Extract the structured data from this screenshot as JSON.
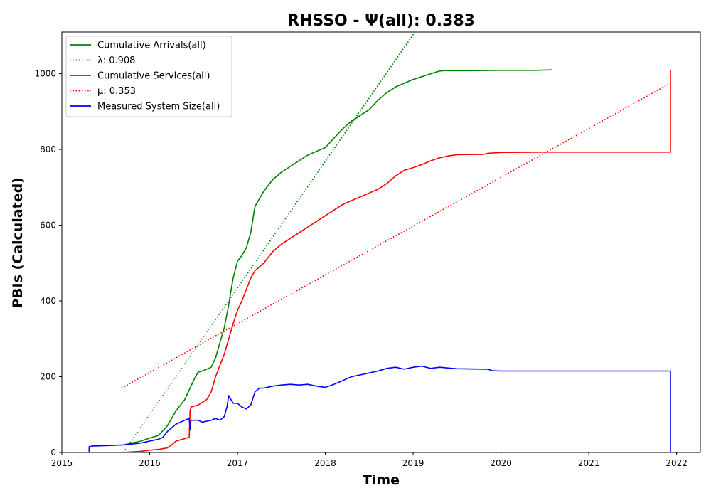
{
  "chart_data": {
    "type": "line",
    "title": "RHSSO -  Ψ(all): 0.383",
    "xlabel": "Time",
    "ylabel": "PBIs (Calculated)",
    "xlim": [
      2015.0,
      2022.27
    ],
    "ylim": [
      0,
      1110
    ],
    "x_ticks": [
      2015,
      2016,
      2017,
      2018,
      2019,
      2020,
      2021,
      2022
    ],
    "y_ticks": [
      0,
      200,
      400,
      600,
      800,
      1000
    ],
    "legend_position": "top-left",
    "grid": false,
    "series": [
      {
        "name": "Cumulative Arrivals(all)",
        "style": "solid",
        "color": "#008000",
        "x": [
          2015.7,
          2015.8,
          2015.9,
          2016.0,
          2016.1,
          2016.2,
          2016.3,
          2016.4,
          2016.5,
          2016.55,
          2016.6,
          2016.7,
          2016.75,
          2016.8,
          2016.85,
          2016.9,
          2016.92,
          2016.95,
          2017.0,
          2017.05,
          2017.1,
          2017.15,
          2017.2,
          2017.25,
          2017.3,
          2017.4,
          2017.5,
          2017.6,
          2017.7,
          2017.8,
          2017.9,
          2018.0,
          2018.1,
          2018.2,
          2018.3,
          2018.4,
          2018.5,
          2018.6,
          2018.7,
          2018.8,
          2018.9,
          2019.0,
          2019.1,
          2019.2,
          2019.3,
          2019.35,
          2019.6,
          2020.0,
          2020.4,
          2020.58
        ],
        "y": [
          20,
          25,
          30,
          38,
          45,
          70,
          110,
          140,
          190,
          212,
          215,
          225,
          250,
          290,
          330,
          390,
          420,
          460,
          505,
          520,
          540,
          580,
          650,
          670,
          690,
          720,
          740,
          755,
          770,
          785,
          795,
          805,
          830,
          855,
          875,
          890,
          905,
          930,
          950,
          965,
          975,
          985,
          992,
          1000,
          1007,
          1008,
          1008,
          1009,
          1009,
          1010
        ]
      },
      {
        "name": "λ: 0.908",
        "style": "dotted",
        "color": "#008000",
        "x": [
          2015.7,
          2019.02
        ],
        "y": [
          0,
          1110
        ]
      },
      {
        "name": "Cumulative Services(all)",
        "style": "solid",
        "color": "#ff0000",
        "x": [
          2015.68,
          2015.9,
          2016.0,
          2016.1,
          2016.15,
          2016.2,
          2016.25,
          2016.3,
          2016.45,
          2016.46,
          2016.47,
          2016.55,
          2016.65,
          2016.7,
          2016.75,
          2016.8,
          2016.85,
          2016.9,
          2016.95,
          2017.0,
          2017.05,
          2017.1,
          2017.15,
          2017.2,
          2017.3,
          2017.4,
          2017.5,
          2017.6,
          2017.7,
          2017.8,
          2017.9,
          2018.0,
          2018.1,
          2018.2,
          2018.3,
          2018.4,
          2018.5,
          2018.6,
          2018.7,
          2018.8,
          2018.9,
          2019.0,
          2019.1,
          2019.2,
          2019.3,
          2019.4,
          2019.5,
          2019.8,
          2019.85,
          2020.0,
          2020.5,
          2021.0,
          2021.5,
          2021.93,
          2021.93
        ],
        "y": [
          0,
          3,
          6,
          8,
          10,
          12,
          20,
          30,
          40,
          110,
          120,
          125,
          140,
          160,
          200,
          230,
          260,
          300,
          340,
          375,
          400,
          430,
          460,
          480,
          500,
          530,
          550,
          565,
          580,
          595,
          610,
          625,
          640,
          655,
          665,
          675,
          685,
          695,
          710,
          730,
          745,
          752,
          760,
          770,
          778,
          783,
          786,
          787,
          790,
          792,
          793,
          793,
          793,
          793,
          1010
        ]
      },
      {
        "name": "μ: 0.353",
        "style": "dotted",
        "color": "#ff0000",
        "x": [
          2015.68,
          2021.93
        ],
        "y": [
          170,
          975
        ]
      },
      {
        "name": "Measured System Size(all)",
        "style": "solid",
        "color": "#0000ff",
        "x": [
          2015.31,
          2015.31,
          2015.35,
          2015.5,
          2015.7,
          2015.9,
          2016.0,
          2016.1,
          2016.15,
          2016.2,
          2016.25,
          2016.3,
          2016.35,
          2016.4,
          2016.45,
          2016.46,
          2016.47,
          2016.55,
          2016.6,
          2016.7,
          2016.75,
          2016.8,
          2016.85,
          2016.88,
          2016.9,
          2016.95,
          2017.0,
          2017.05,
          2017.1,
          2017.15,
          2017.2,
          2017.25,
          2017.3,
          2017.4,
          2017.5,
          2017.6,
          2017.7,
          2017.8,
          2017.9,
          2018.0,
          2018.1,
          2018.2,
          2018.3,
          2018.4,
          2018.5,
          2018.6,
          2018.7,
          2018.8,
          2018.9,
          2019.0,
          2019.1,
          2019.2,
          2019.3,
          2019.4,
          2019.5,
          2019.85,
          2019.9,
          2020.0,
          2020.5,
          2021.0,
          2021.5,
          2021.93,
          2021.93
        ],
        "y": [
          0,
          15,
          17,
          18,
          20,
          25,
          30,
          35,
          40,
          55,
          65,
          75,
          80,
          85,
          90,
          60,
          85,
          85,
          80,
          85,
          90,
          85,
          95,
          120,
          150,
          130,
          130,
          120,
          115,
          125,
          160,
          170,
          170,
          175,
          178,
          180,
          178,
          180,
          175,
          172,
          180,
          190,
          200,
          205,
          210,
          215,
          222,
          225,
          220,
          225,
          228,
          222,
          225,
          223,
          221,
          220,
          216,
          215,
          215,
          215,
          215,
          215,
          0
        ]
      }
    ]
  }
}
